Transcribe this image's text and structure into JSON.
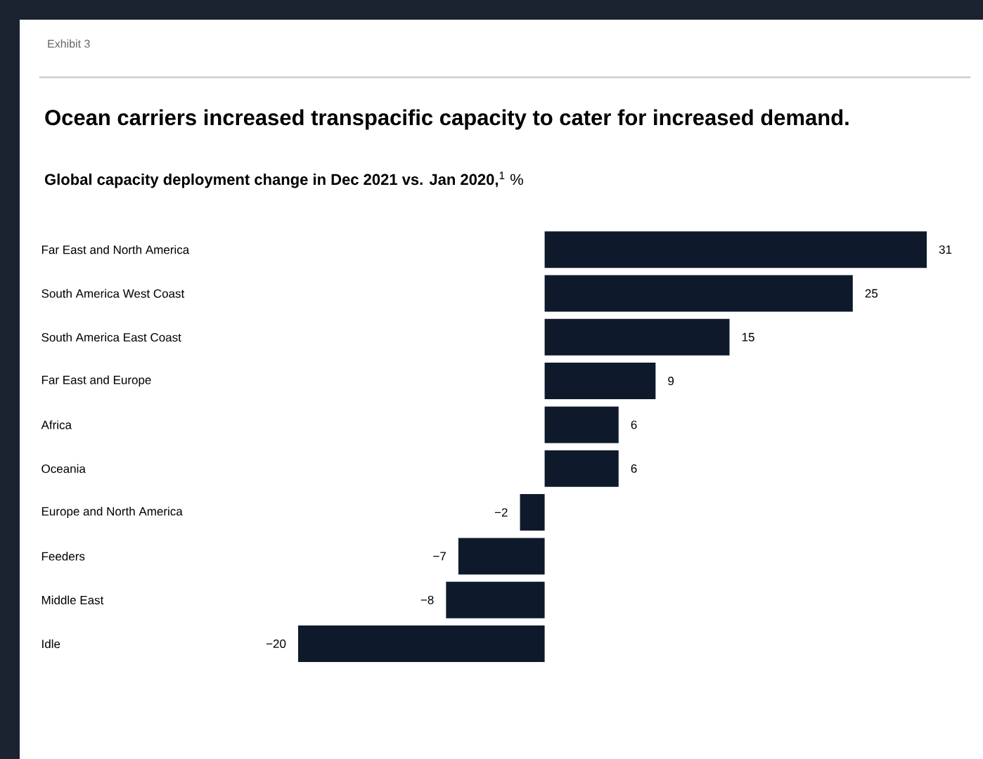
{
  "chart_data": {
    "type": "bar",
    "orientation": "horizontal",
    "title": "Ocean carriers increased transpacific capacity to cater for increased demand.",
    "subtitle": "**Global capacity deployment change in Dec 2021 vs. Jan 2020,**$^{1}$ %",
    "annotations": [
      "Exhibit 3"
    ],
    "categories": [
      "Far East and North America",
      "South America West Coast",
      "South America East Coast",
      "Far East and Europe",
      "Africa",
      "Oceania",
      "Europe and North America",
      "Feeders",
      "Middle East",
      "Idle"
    ],
    "values": [
      31,
      25,
      15,
      9,
      6,
      6,
      -2,
      -7,
      -8,
      -20
    ],
    "value_labels": [
      "31",
      "25",
      "15",
      "9",
      "6",
      "6",
      "−2",
      "−7",
      "−8",
      "−20"
    ],
    "color": "#0e1a2c",
    "xlim": [
      -20,
      31
    ]
  }
}
